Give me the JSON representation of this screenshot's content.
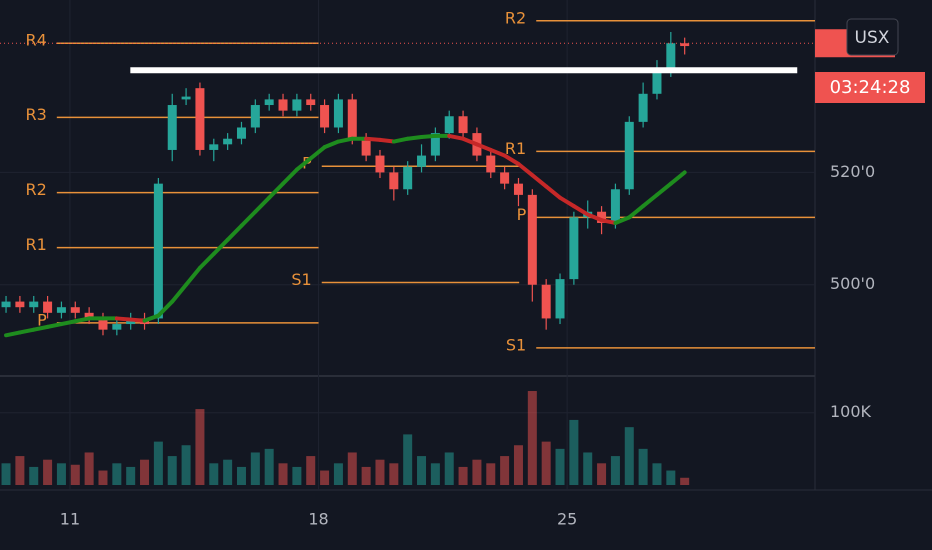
{
  "chart_data": {
    "type": "candlestick",
    "symbol": "USX",
    "countdown": "03:24:28",
    "x": [
      9.2,
      9.59,
      9.98,
      10.37,
      10.76,
      11.15,
      11.54,
      11.93,
      12.32,
      12.71,
      13.1,
      13.49,
      13.88,
      14.27,
      14.66,
      15.05,
      15.44,
      15.83,
      16.22,
      16.61,
      17.0,
      17.39,
      17.78,
      18.17,
      18.56,
      18.95,
      19.34,
      19.73,
      20.12,
      20.51,
      20.9,
      21.29,
      21.68,
      22.07,
      22.46,
      22.85,
      23.24,
      23.63,
      24.02,
      24.41,
      24.8,
      25.19,
      25.58,
      25.97,
      26.36,
      26.75,
      27.14,
      27.53,
      27.92,
      28.31
    ],
    "open": [
      496,
      497,
      496,
      497,
      495,
      496,
      495,
      494,
      492,
      493,
      494,
      494,
      524,
      533,
      535,
      524,
      525,
      526,
      528,
      532,
      533,
      531,
      533,
      532,
      528,
      533,
      526,
      523,
      520,
      517,
      521,
      523,
      527,
      530,
      527,
      523,
      520,
      518,
      516,
      500,
      494,
      501,
      512,
      513,
      511,
      517,
      529,
      534,
      538,
      543
    ],
    "high": [
      498,
      498,
      498,
      498,
      497,
      497,
      496,
      495,
      494,
      495,
      495,
      519,
      534,
      535,
      536,
      526,
      527,
      529,
      533,
      534,
      534,
      534,
      534,
      533,
      534,
      534,
      527,
      524,
      521,
      522,
      525,
      528,
      531,
      531,
      528,
      524,
      521,
      519,
      517,
      501,
      502,
      513,
      515,
      514,
      518,
      530,
      536,
      540,
      545,
      544
    ],
    "low": [
      495,
      495,
      495,
      494,
      494,
      494,
      493,
      491,
      491,
      492,
      492,
      493,
      522,
      532,
      523,
      522,
      524,
      525,
      527,
      531,
      530,
      530,
      531,
      527,
      527,
      525,
      522,
      519,
      515,
      516,
      520,
      522,
      526,
      526,
      522,
      519,
      517,
      514,
      497,
      492,
      493,
      500,
      510,
      509,
      510,
      516,
      528,
      533,
      537,
      541
    ],
    "close": [
      497,
      496,
      497,
      495,
      496,
      495,
      494,
      492,
      493,
      494,
      493,
      518,
      532,
      533.5,
      524,
      525,
      526,
      528,
      532,
      533,
      531,
      533,
      532,
      528,
      533,
      526,
      523,
      520,
      517,
      521,
      523,
      527,
      530,
      527,
      523,
      520,
      518,
      516,
      500,
      494,
      501,
      512,
      513,
      511,
      517,
      529,
      534,
      538,
      543,
      542.5
    ],
    "up_color": "#26a69a",
    "down_color": "#ef5350",
    "xlim": [
      9.03,
      31.98
    ],
    "xticks": [
      11,
      18,
      25
    ],
    "ylim": [
      483.75,
      550.7
    ],
    "yticks": [
      {
        "value": 500,
        "label": "500'0"
      },
      {
        "value": 520,
        "label": "520'0"
      }
    ],
    "grid": true,
    "volume": {
      "values": [
        30000,
        40000,
        25000,
        35000,
        30000,
        28000,
        45000,
        20000,
        30000,
        25000,
        35000,
        60000,
        40000,
        55000,
        105000,
        30000,
        35000,
        25000,
        45000,
        50000,
        30000,
        25000,
        40000,
        20000,
        30000,
        45000,
        25000,
        35000,
        30000,
        70000,
        40000,
        30000,
        45000,
        25000,
        35000,
        30000,
        40000,
        55000,
        130000,
        60000,
        50000,
        90000,
        45000,
        30000,
        40000,
        80000,
        50000,
        30000,
        20000,
        10000
      ],
      "ylim": [
        0,
        148000
      ],
      "yticks": [
        {
          "value": 100000,
          "label": "100K"
        }
      ]
    },
    "moving_average": {
      "values": [
        491,
        491.5,
        492,
        492.5,
        493,
        493.5,
        494,
        494,
        494,
        493.8,
        493.6,
        494.5,
        497,
        500,
        503,
        505.5,
        508,
        510.5,
        513,
        515.5,
        518,
        520.5,
        522.5,
        524.5,
        525.5,
        526,
        526,
        525.8,
        525.5,
        526,
        526.3,
        526.5,
        526.5,
        526,
        525,
        524,
        523,
        521.5,
        519.5,
        517.5,
        515.5,
        514,
        512.5,
        511.5,
        511,
        512,
        514,
        516,
        518,
        520
      ],
      "up_color": "#1e8c1e",
      "down_color": "#c62828"
    },
    "pivot_color": "#e8913a",
    "pivots": [
      {
        "x": [
          10.63,
          18.0
        ],
        "levels": [
          {
            "label": "R4",
            "value": 543
          },
          {
            "label": "R3",
            "value": 529.8
          },
          {
            "label": "R2",
            "value": 516.4
          },
          {
            "label": "R1",
            "value": 506.6
          },
          {
            "label": "P",
            "value": 493.2
          }
        ]
      },
      {
        "x": [
          18.09,
          23.65
        ],
        "levels": [
          {
            "label": "P",
            "value": 521.1
          },
          {
            "label": "S1",
            "value": 500.4
          }
        ]
      },
      {
        "x": [
          24.13,
          31.98
        ],
        "levels": [
          {
            "label": "R2",
            "value": 547
          },
          {
            "label": "R1",
            "value": 523.75
          },
          {
            "label": "P",
            "value": 512
          },
          {
            "label": "S1",
            "value": 488.75
          }
        ]
      }
    ],
    "trendline": {
      "value": 538.2,
      "x": [
        12.7,
        31.48
      ],
      "color": "#ffffff"
    },
    "last_price": 543
  }
}
